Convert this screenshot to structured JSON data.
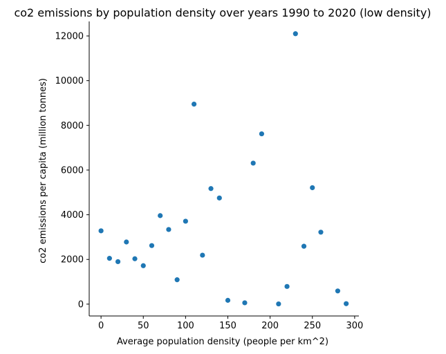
{
  "chart_data": {
    "type": "scatter",
    "title": "co2 emissions by population density over years 1990 to 2020 (low density)",
    "xlabel": "Average population density (people per km^2)",
    "ylabel": "co2 emissions per capita (million tonnes)",
    "xlim": [
      -14,
      305
    ],
    "ylim": [
      -530,
      12650
    ],
    "xticks": [
      0,
      50,
      100,
      150,
      200,
      250,
      300
    ],
    "yticks": [
      0,
      2000,
      4000,
      6000,
      8000,
      10000,
      12000
    ],
    "grid": false,
    "color": "#1f77b4",
    "points": [
      {
        "x": 0,
        "y": 3280
      },
      {
        "x": 10,
        "y": 2050
      },
      {
        "x": 20,
        "y": 1900
      },
      {
        "x": 30,
        "y": 2780
      },
      {
        "x": 40,
        "y": 2030
      },
      {
        "x": 50,
        "y": 1720
      },
      {
        "x": 60,
        "y": 2620
      },
      {
        "x": 70,
        "y": 3960
      },
      {
        "x": 80,
        "y": 3340
      },
      {
        "x": 90,
        "y": 1090
      },
      {
        "x": 100,
        "y": 3710
      },
      {
        "x": 110,
        "y": 8950
      },
      {
        "x": 120,
        "y": 2190
      },
      {
        "x": 130,
        "y": 5170
      },
      {
        "x": 140,
        "y": 4750
      },
      {
        "x": 150,
        "y": 170
      },
      {
        "x": 170,
        "y": 60
      },
      {
        "x": 180,
        "y": 6310
      },
      {
        "x": 190,
        "y": 7620
      },
      {
        "x": 210,
        "y": 10
      },
      {
        "x": 220,
        "y": 790
      },
      {
        "x": 230,
        "y": 12100
      },
      {
        "x": 240,
        "y": 2590
      },
      {
        "x": 250,
        "y": 5210
      },
      {
        "x": 260,
        "y": 3220
      },
      {
        "x": 280,
        "y": 590
      },
      {
        "x": 290,
        "y": 20
      }
    ]
  }
}
